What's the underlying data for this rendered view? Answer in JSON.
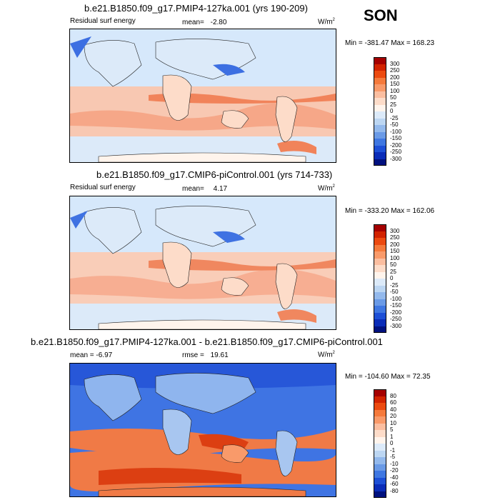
{
  "season": "SON",
  "panels": [
    {
      "id": "p1",
      "title": "b.e21.B1850.f09_g17.PMIP4-127ka.001 (yrs 190-209)",
      "left_label": "Residual surf energy",
      "stat_label": "mean=",
      "stat_value": "-2.80",
      "units": "W/m",
      "units_exp": "2",
      "minmax": "Min = -381.47 Max = 168.23",
      "scale": [
        "300",
        "250",
        "200",
        "150",
        "100",
        "50",
        "25",
        "0",
        "-25",
        "-50",
        "-100",
        "-150",
        "-200",
        "-250",
        "-300"
      ],
      "colors": [
        "#a50000",
        "#d22300",
        "#ec4a10",
        "#f57a3c",
        "#f99a6a",
        "#fbbea0",
        "#fddcc9",
        "#fff4ec",
        "#dceaf9",
        "#bcd6f2",
        "#93b9ec",
        "#6a9ae6",
        "#3f77e1",
        "#1d4fd6",
        "#0a2cb8",
        "#00117f"
      ],
      "map": {
        "ocean": "#d6e8fb",
        "warm": "#f6a788",
        "warm2": "#f1835a",
        "cold": "#7ea9ef",
        "cold2": "#3c6fe2",
        "land": "#dceaf9"
      }
    },
    {
      "id": "p2",
      "title": "b.e21.B1850.f09_g17.CMIP6-piControl.001 (yrs 714-733)",
      "left_label": "Residual surf energy",
      "stat_label": "mean=",
      "stat_value": "4.17",
      "units": "W/m",
      "units_exp": "2",
      "minmax": "Min = -333.20 Max = 162.06",
      "scale": [
        "300",
        "250",
        "200",
        "150",
        "100",
        "50",
        "25",
        "0",
        "-25",
        "-50",
        "-100",
        "-150",
        "-200",
        "-250",
        "-300"
      ],
      "colors": [
        "#a50000",
        "#d22300",
        "#ec4a10",
        "#f57a3c",
        "#f99a6a",
        "#fbbea0",
        "#fddcc9",
        "#fff4ec",
        "#dceaf9",
        "#bcd6f2",
        "#93b9ec",
        "#6a9ae6",
        "#3f77e1",
        "#1d4fd6",
        "#0a2cb8",
        "#00117f"
      ],
      "map": {
        "ocean": "#d6e8fb",
        "warm": "#f7ae92",
        "warm2": "#f0875f",
        "cold": "#86aeef",
        "cold2": "#3f72e2",
        "land": "#dceaf9"
      }
    },
    {
      "id": "p3",
      "title": "b.e21.B1850.f09_g17.PMIP4-127ka.001 - b.e21.B1850.f09_g17.CMIP6-piControl.001",
      "left_label": "mean =  -6.97",
      "stat_label": "rmse =",
      "stat_value": "19.61",
      "units": "W/m",
      "units_exp": "2",
      "minmax": "Min = -104.60 Max = 72.35",
      "scale": [
        "80",
        "60",
        "40",
        "20",
        "10",
        "5",
        "1",
        "0",
        "-1",
        "-5",
        "-10",
        "-20",
        "-40",
        "-60",
        "-80"
      ],
      "colors": [
        "#a50000",
        "#d22300",
        "#ec4a10",
        "#f57a3c",
        "#f99a6a",
        "#fbbea0",
        "#fddcc9",
        "#fff4ec",
        "#dceaf9",
        "#bcd6f2",
        "#93b9ec",
        "#6a9ae6",
        "#3f77e1",
        "#1d4fd6",
        "#0a2cb8",
        "#00117f"
      ],
      "map": {
        "ocean": "#3f74e3",
        "warm": "#f07a46",
        "warm2": "#dc3f12",
        "cold": "#8fb5ee",
        "cold2": "#2757d8",
        "land": "#a8c6f0"
      }
    }
  ]
}
